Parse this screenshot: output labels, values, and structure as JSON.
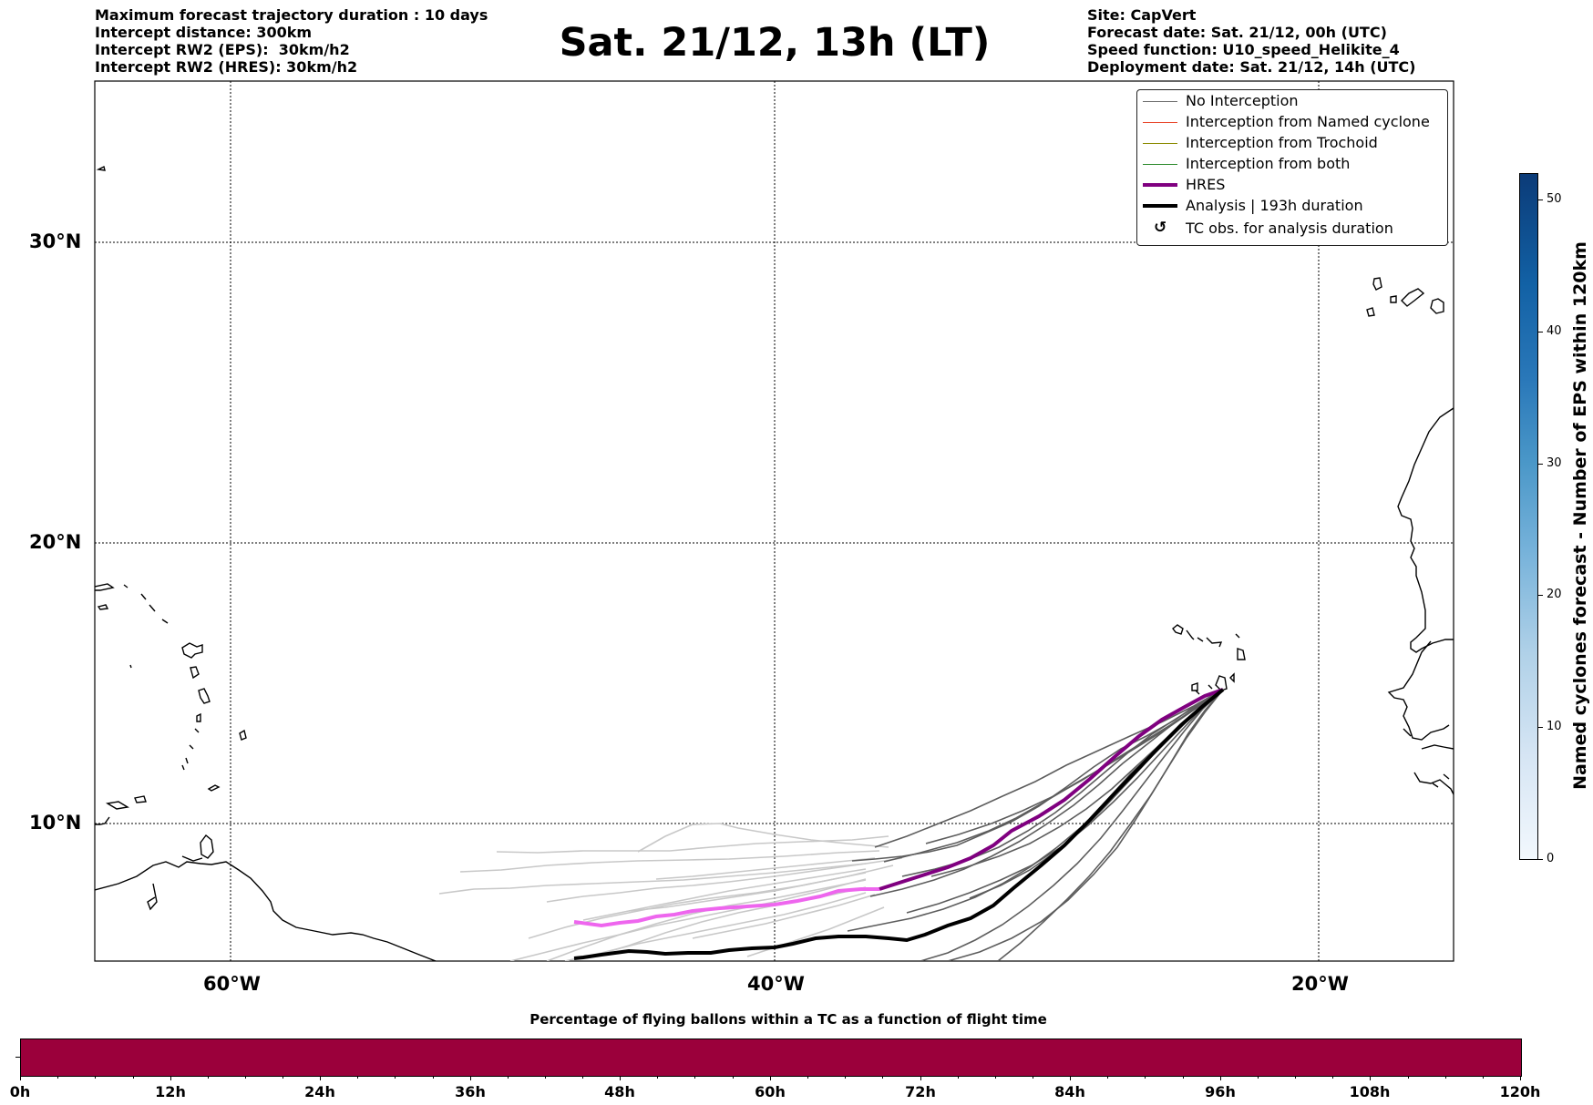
{
  "header_left": [
    "Maximum forecast trajectory duration : 10 days",
    "Intercept distance: 300km",
    "Intercept RW2 (EPS):  30km/h2",
    "Intercept RW2 (HRES): 30km/h2"
  ],
  "title": "Sat. 21/12, 13h (LT)",
  "header_right": [
    "Site: CapVert",
    "Forecast date: Sat. 21/12, 00h (UTC)",
    "Speed function: U10_speed_Helikite_4",
    "Deployment date: Sat. 21/12, 14h (UTC)"
  ],
  "map": {
    "lat_labels": [
      "30°N",
      "20°N",
      "10°N"
    ],
    "lon_labels": [
      "60°W",
      "40°W",
      "20°W"
    ],
    "lat_lines": [
      30,
      20,
      10
    ],
    "lon_lines": [
      -60,
      -40,
      -20
    ]
  },
  "legend": [
    {
      "label": "No Interception",
      "color": "#6b6b6b",
      "style": "thin"
    },
    {
      "label": "Interception from Named cyclone",
      "color": "#e8462a",
      "style": "thin"
    },
    {
      "label": "Interception from Trochoid",
      "color": "#8a8a00",
      "style": "thin"
    },
    {
      "label": "Interception from both",
      "color": "#2e8b2e",
      "style": "thin"
    },
    {
      "label": "HRES",
      "color": "#800080",
      "style": "thick"
    },
    {
      "label": "Analysis | 193h duration",
      "color": "#000000",
      "style": "thick"
    },
    {
      "label": "TC obs. for analysis duration",
      "color": "#000000",
      "style": "symbol",
      "symbol": "↺"
    }
  ],
  "colorbar": {
    "label": "Named cyclones forecast - Number of EPS within 120km",
    "ticks": [
      "0",
      "10",
      "20",
      "30",
      "40",
      "50"
    ],
    "min": 0,
    "max": 52
  },
  "bottom_bar": {
    "title": "Percentage of flying ballons within a TC as a function of flight time",
    "color": "#9b003b",
    "ticks": [
      "0h",
      "12h",
      "24h",
      "36h",
      "48h",
      "60h",
      "72h",
      "84h",
      "96h",
      "108h",
      "120h"
    ]
  }
}
